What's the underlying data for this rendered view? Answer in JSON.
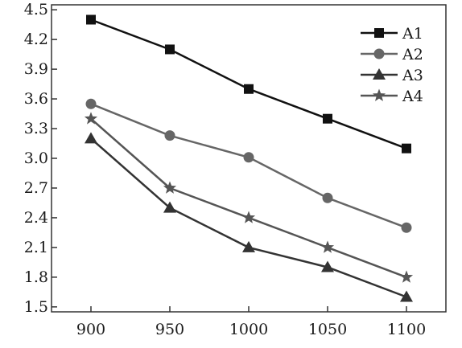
{
  "chart_data": {
    "type": "line",
    "title": "",
    "xlabel": "",
    "ylabel": "",
    "x": [
      900,
      950,
      1000,
      1050,
      1100
    ],
    "xlim": [
      875,
      1125
    ],
    "ylim": [
      1.45,
      4.55
    ],
    "yticks": [
      1.5,
      1.8,
      2.1,
      2.4,
      2.7,
      3.0,
      3.3,
      3.6,
      3.9,
      4.2,
      4.5
    ],
    "ytick_labels": [
      "1.5",
      "1.8",
      "2.1",
      "2.4",
      "2.7",
      "3.0",
      "3.3",
      "3.6",
      "3.9",
      "4.2",
      "4.5"
    ],
    "xtick_labels": [
      "900",
      "950",
      "1000",
      "1050",
      "1100"
    ],
    "grid": false,
    "legend_position": "top-right",
    "series": [
      {
        "name": "A1",
        "marker": "square",
        "color": "#111111",
        "values": [
          4.4,
          4.1,
          3.7,
          3.4,
          3.1
        ]
      },
      {
        "name": "A2",
        "marker": "circle",
        "color": "#666666",
        "values": [
          3.55,
          3.23,
          3.01,
          2.6,
          2.3
        ]
      },
      {
        "name": "A3",
        "marker": "triangle",
        "color": "#333333",
        "values": [
          3.2,
          2.5,
          2.1,
          1.9,
          1.6
        ]
      },
      {
        "name": "A4",
        "marker": "star",
        "color": "#555555",
        "values": [
          3.4,
          2.7,
          2.4,
          2.1,
          1.8
        ]
      }
    ]
  }
}
